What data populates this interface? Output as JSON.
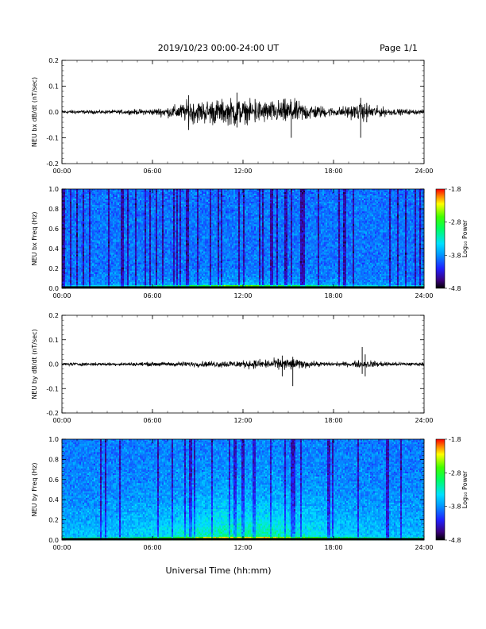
{
  "header": {
    "title": "2019/10/23  00:00-24:00 UT",
    "page": "Page 1/1"
  },
  "xlabel": "Universal Time (hh:mm)",
  "colorbar_label": "Log₁₀ Power",
  "chart_data": [
    {
      "type": "line",
      "ylabel": "NEU bx dB/dt (nT/sec)",
      "ylim": [
        -0.2,
        0.2
      ],
      "yticks": [
        "0.2",
        "0.1",
        "0.0",
        "-0.1",
        "-0.2"
      ],
      "yvals": [
        0.2,
        0.1,
        0.0,
        -0.1,
        -0.2
      ],
      "xlim": [
        0,
        24
      ],
      "xticks": [
        "00:00",
        "06:00",
        "12:00",
        "18:00",
        "24:00"
      ],
      "envelope": [
        [
          0,
          0.01
        ],
        [
          2,
          0.008
        ],
        [
          4,
          0.01
        ],
        [
          6,
          0.015
        ],
        [
          7,
          0.025
        ],
        [
          8,
          0.04
        ],
        [
          8.5,
          0.06
        ],
        [
          9,
          0.05
        ],
        [
          10,
          0.06
        ],
        [
          11,
          0.055
        ],
        [
          11.5,
          0.075
        ],
        [
          12,
          0.05
        ],
        [
          13,
          0.055
        ],
        [
          14,
          0.05
        ],
        [
          15,
          0.06
        ],
        [
          16,
          0.045
        ],
        [
          17,
          0.03
        ],
        [
          18,
          0.02
        ],
        [
          19,
          0.03
        ],
        [
          20,
          0.04
        ],
        [
          21,
          0.025
        ],
        [
          22,
          0.015
        ],
        [
          24,
          0.01
        ]
      ],
      "spikes": [
        [
          8.4,
          0.065,
          -0.07
        ],
        [
          11.6,
          0.075,
          -0.06
        ],
        [
          12.8,
          0.05,
          -0.04
        ],
        [
          15.2,
          0.04,
          -0.1
        ],
        [
          19.8,
          0.055,
          -0.1
        ],
        [
          20.2,
          0.035,
          -0.04
        ]
      ]
    },
    {
      "type": "heatmap",
      "ylabel": "NEU bx Freq (Hz)",
      "ylim": [
        0.0,
        1.0
      ],
      "yticks": [
        "1.0",
        "0.8",
        "0.6",
        "0.4",
        "0.2",
        "0.0"
      ],
      "yvals": [
        1.0,
        0.8,
        0.6,
        0.4,
        0.2,
        0.0
      ],
      "xlim": [
        0,
        24
      ],
      "xticks": [
        "00:00",
        "06:00",
        "12:00",
        "18:00",
        "24:00"
      ],
      "clim": [
        -4.8,
        -1.8
      ],
      "cticks": [
        "-1.8",
        "-2.8",
        "-3.8",
        "-4.8"
      ],
      "low_freq_enhancement": "weak"
    },
    {
      "type": "line",
      "ylabel": "NEU by dB/dt (nT/sec)",
      "ylim": [
        -0.2,
        0.2
      ],
      "yticks": [
        "0.2",
        "0.1",
        "0.0",
        "-0.1",
        "-0.2"
      ],
      "yvals": [
        0.2,
        0.1,
        0.0,
        -0.1,
        -0.2
      ],
      "xlim": [
        0,
        24
      ],
      "xticks": [
        "00:00",
        "06:00",
        "12:00",
        "18:00",
        "24:00"
      ],
      "envelope": [
        [
          0,
          0.008
        ],
        [
          4,
          0.008
        ],
        [
          6,
          0.01
        ],
        [
          8,
          0.012
        ],
        [
          10,
          0.015
        ],
        [
          11,
          0.018
        ],
        [
          12,
          0.018
        ],
        [
          13,
          0.022
        ],
        [
          14,
          0.025
        ],
        [
          15,
          0.03
        ],
        [
          16,
          0.02
        ],
        [
          17,
          0.012
        ],
        [
          18,
          0.01
        ],
        [
          19,
          0.012
        ],
        [
          20,
          0.02
        ],
        [
          21,
          0.015
        ],
        [
          22,
          0.01
        ],
        [
          24,
          0.008
        ]
      ],
      "spikes": [
        [
          14.6,
          0.035,
          -0.05
        ],
        [
          15.3,
          0.03,
          -0.09
        ],
        [
          19.9,
          0.07,
          -0.04
        ],
        [
          20.1,
          0.04,
          -0.05
        ]
      ]
    },
    {
      "type": "heatmap",
      "ylabel": "NEU by Freq (Hz)",
      "ylim": [
        0.0,
        1.0
      ],
      "yticks": [
        "1.0",
        "0.8",
        "0.6",
        "0.4",
        "0.2",
        "0.0"
      ],
      "yvals": [
        1.0,
        0.8,
        0.6,
        0.4,
        0.2,
        0.0
      ],
      "xlim": [
        0,
        24
      ],
      "xticks": [
        "00:00",
        "06:00",
        "12:00",
        "18:00",
        "24:00"
      ],
      "clim": [
        -4.8,
        -1.8
      ],
      "cticks": [
        "-1.8",
        "-2.8",
        "-3.8",
        "-4.8"
      ],
      "low_freq_enhancement": "strong"
    }
  ]
}
